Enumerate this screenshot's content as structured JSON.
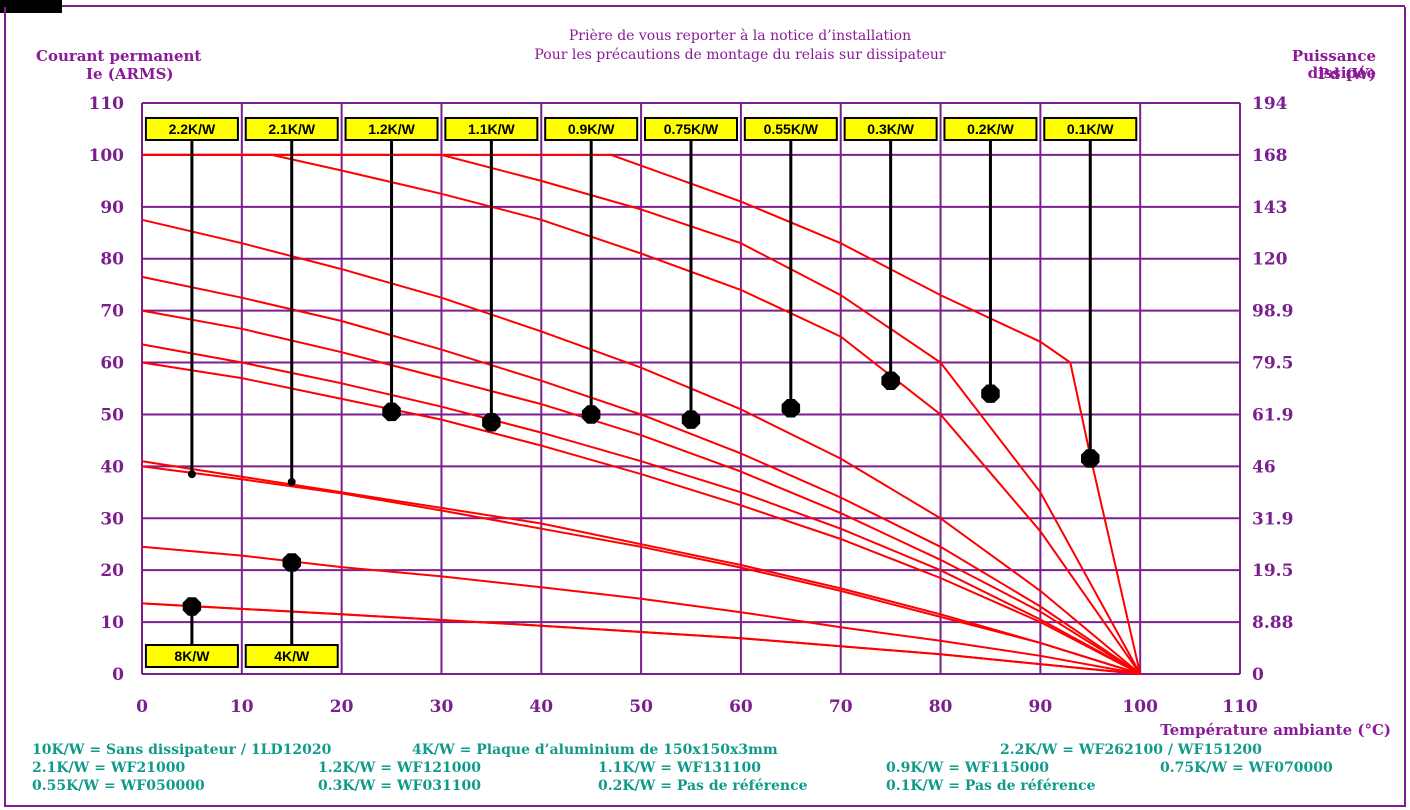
{
  "header": {
    "note_line1": "Prière de vous reporter à la notice d’installation",
    "note_line2": "Pour les précautions de montage du relais sur dissipateur",
    "left_axis_title_1": "Courant permanent",
    "left_axis_title_2": "Ie (ARMS)",
    "right_axis_title_1": "Puissance dissipée",
    "right_axis_title_2": "Pd (W)",
    "x_axis_title": "Température ambiante (°C)"
  },
  "legend_rows": [
    [
      "10K/W = Sans dissipateur / 1LD12020",
      "4K/W = Plaque d’aluminium de 150x150x3mm",
      "2.2K/W = WF262100 / WF151200"
    ],
    [
      "2.1K/W = WF21000",
      "1.2K/W = WF121000",
      "1.1K/W = WF131100",
      "0.9K/W = WF115000",
      "0.75K/W = WF070000"
    ],
    [
      "0.55K/W = WF050000",
      "0.3K/W = WF031100",
      "0.2K/W = Pas de référence",
      "0.1K/W = Pas de référence"
    ]
  ],
  "colors": {
    "grid": "#7b1f8f",
    "curve": "#ff0000",
    "label_bg": "#ffff00",
    "footer_text": "#0f9a8a"
  },
  "chart_data": {
    "type": "line",
    "xlim": [
      0,
      110
    ],
    "ylim": [
      0,
      110
    ],
    "x_ticks": [
      "0",
      "10",
      "20",
      "30",
      "40",
      "50",
      "60",
      "70",
      "80",
      "90",
      "100",
      "110"
    ],
    "y_ticks": [
      "0",
      "10",
      "20",
      "30",
      "40",
      "50",
      "60",
      "70",
      "80",
      "90",
      "100",
      "110"
    ],
    "y2_ticks": [
      "0",
      "8.88",
      "19.5",
      "31.9",
      "46",
      "61.9",
      "79.5",
      "98.9",
      "120",
      "143",
      "168",
      "194"
    ],
    "grid": true,
    "series": [
      {
        "name": "10K/W",
        "points": [
          [
            0,
            13.6
          ],
          [
            20,
            11.5
          ],
          [
            40,
            9.3
          ],
          [
            60,
            6.9
          ],
          [
            80,
            3.8
          ],
          [
            100,
            0
          ]
        ]
      },
      {
        "name": "8K/W",
        "points": [
          [
            0,
            13.6
          ],
          [
            20,
            11.5
          ],
          [
            40,
            9.3
          ],
          [
            60,
            6.9
          ],
          [
            80,
            3.8
          ],
          [
            100,
            0
          ]
        ],
        "marker": [
          5,
          13
        ]
      },
      {
        "name": "4K/W",
        "points": [
          [
            0,
            24.5
          ],
          [
            10,
            22.8
          ],
          [
            20,
            20.6
          ],
          [
            30,
            18.8
          ],
          [
            40,
            16.7
          ],
          [
            50,
            14.5
          ],
          [
            60,
            11.9
          ],
          [
            70,
            9.0
          ],
          [
            80,
            6.4
          ],
          [
            90,
            3.5
          ],
          [
            100,
            0
          ]
        ],
        "marker": [
          15,
          21.5
        ]
      },
      {
        "name": "2.2K/W",
        "points": [
          [
            0,
            40
          ],
          [
            10,
            37.5
          ],
          [
            20,
            34.8
          ],
          [
            30,
            31.5
          ],
          [
            40,
            28
          ],
          [
            50,
            24.5
          ],
          [
            60,
            20.5
          ],
          [
            70,
            16
          ],
          [
            80,
            11
          ],
          [
            90,
            6
          ],
          [
            100,
            0
          ]
        ],
        "marker": [
          5,
          38.5
        ]
      },
      {
        "name": "2.1K/W",
        "points": [
          [
            0,
            41
          ],
          [
            10,
            38
          ],
          [
            20,
            35
          ],
          [
            30,
            32
          ],
          [
            40,
            29
          ],
          [
            50,
            25
          ],
          [
            60,
            21
          ],
          [
            70,
            16.5
          ],
          [
            80,
            11.5
          ],
          [
            90,
            6
          ],
          [
            100,
            0
          ]
        ],
        "marker": [
          15,
          37
        ]
      },
      {
        "name": "1.2K/W",
        "points": [
          [
            0,
            60
          ],
          [
            10,
            57
          ],
          [
            20,
            53
          ],
          [
            30,
            49
          ],
          [
            40,
            44
          ],
          [
            50,
            38.5
          ],
          [
            60,
            32.5
          ],
          [
            70,
            26
          ],
          [
            80,
            18.5
          ],
          [
            90,
            10
          ],
          [
            100,
            0
          ]
        ],
        "marker": [
          25,
          50.5
        ]
      },
      {
        "name": "1.1K/W",
        "points": [
          [
            0,
            63.5
          ],
          [
            10,
            60
          ],
          [
            20,
            56
          ],
          [
            30,
            51.5
          ],
          [
            40,
            46.5
          ],
          [
            50,
            41
          ],
          [
            60,
            35
          ],
          [
            70,
            28
          ],
          [
            80,
            20
          ],
          [
            90,
            10.5
          ],
          [
            100,
            0
          ]
        ],
        "marker": [
          35,
          48.5
        ]
      },
      {
        "name": "0.9K/W",
        "points": [
          [
            0,
            70
          ],
          [
            10,
            66.5
          ],
          [
            20,
            62
          ],
          [
            30,
            57
          ],
          [
            40,
            52
          ],
          [
            50,
            46
          ],
          [
            60,
            39
          ],
          [
            70,
            31
          ],
          [
            80,
            22
          ],
          [
            90,
            12
          ],
          [
            100,
            0
          ]
        ],
        "marker": [
          45,
          50
        ]
      },
      {
        "name": "0.75K/W",
        "points": [
          [
            0,
            76.5
          ],
          [
            10,
            72.5
          ],
          [
            20,
            68
          ],
          [
            30,
            62.5
          ],
          [
            40,
            56.5
          ],
          [
            50,
            50
          ],
          [
            60,
            42.5
          ],
          [
            70,
            34
          ],
          [
            80,
            24.5
          ],
          [
            90,
            13
          ],
          [
            100,
            0
          ]
        ],
        "marker": [
          55,
          49
        ]
      },
      {
        "name": "0.55K/W",
        "points": [
          [
            0,
            87.5
          ],
          [
            10,
            83
          ],
          [
            20,
            78
          ],
          [
            30,
            72.5
          ],
          [
            40,
            66
          ],
          [
            50,
            59
          ],
          [
            60,
            51
          ],
          [
            70,
            41.5
          ],
          [
            80,
            30
          ],
          [
            90,
            16
          ],
          [
            100,
            0
          ]
        ],
        "marker": [
          65,
          51.2
        ]
      },
      {
        "name": "0.3K/W",
        "points": [
          [
            0,
            100
          ],
          [
            13,
            100
          ],
          [
            20,
            97
          ],
          [
            30,
            92.5
          ],
          [
            40,
            87.5
          ],
          [
            50,
            81
          ],
          [
            60,
            74
          ],
          [
            70,
            65
          ],
          [
            80,
            50
          ],
          [
            90,
            27.5
          ],
          [
            100,
            0
          ]
        ],
        "marker": [
          75,
          56.5
        ]
      },
      {
        "name": "0.2K/W",
        "points": [
          [
            0,
            100
          ],
          [
            30,
            100
          ],
          [
            40,
            95
          ],
          [
            50,
            89.5
          ],
          [
            60,
            83
          ],
          [
            70,
            73
          ],
          [
            80,
            60
          ],
          [
            90,
            35
          ],
          [
            100,
            0
          ]
        ],
        "marker": [
          85,
          54
        ]
      },
      {
        "name": "0.1K/W",
        "points": [
          [
            0,
            100
          ],
          [
            47,
            100
          ],
          [
            60,
            91
          ],
          [
            70,
            83
          ],
          [
            80,
            73
          ],
          [
            90,
            64
          ],
          [
            93,
            60
          ],
          [
            95,
            42
          ],
          [
            100,
            0
          ]
        ],
        "marker": [
          95,
          41.5
        ]
      }
    ],
    "top_labels": [
      {
        "text": "2.2K/W",
        "pin_x": 5,
        "pin_y": 38.5
      },
      {
        "text": "2.1K/W",
        "pin_x": 15,
        "pin_y": 37
      },
      {
        "text": "1.2K/W",
        "pin_x": 25,
        "pin_y": 50.5
      },
      {
        "text": "1.1K/W",
        "pin_x": 35,
        "pin_y": 48.5
      },
      {
        "text": "0.9K/W",
        "pin_x": 45,
        "pin_y": 50
      },
      {
        "text": "0.75K/W",
        "pin_x": 55,
        "pin_y": 49
      },
      {
        "text": "0.55K/W",
        "pin_x": 65,
        "pin_y": 51.2
      },
      {
        "text": "0.3K/W",
        "pin_x": 75,
        "pin_y": 56.5
      },
      {
        "text": "0.2K/W",
        "pin_x": 85,
        "pin_y": 54
      },
      {
        "text": "0.1K/W",
        "pin_x": 95,
        "pin_y": 41.5
      }
    ],
    "bottom_labels": [
      {
        "text": "8K/W",
        "pin_x": 5,
        "pin_y": 13
      },
      {
        "text": "4K/W",
        "pin_x": 15,
        "pin_y": 21.5
      }
    ]
  }
}
